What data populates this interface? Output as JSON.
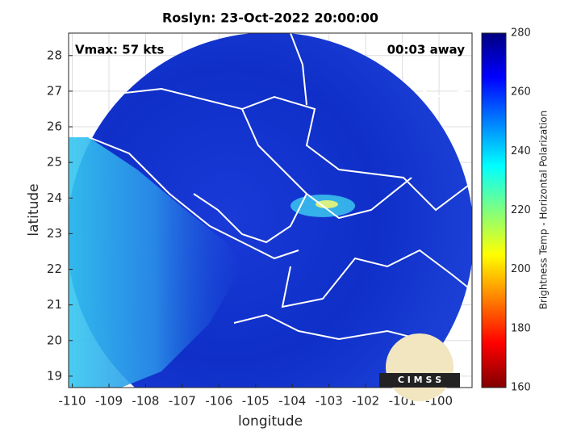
{
  "chart_data": {
    "type": "image",
    "title": "Roslyn: 23-Oct-2022 20:00:00",
    "xlabel": "longitude",
    "ylabel": "latitude",
    "annotations": [
      "Vmax: 57 kts",
      "00:03 away"
    ],
    "logo": "C I M S S",
    "xlim": [
      -110.1,
      -99.1
    ],
    "ylim": [
      18.68,
      28.63
    ],
    "xticks": [
      -110,
      -109,
      -108,
      -107,
      -106,
      -105,
      -104,
      -103,
      -102,
      -101,
      -100
    ],
    "yticks": [
      19,
      20,
      21,
      22,
      23,
      24,
      25,
      26,
      27,
      28
    ],
    "grid": true,
    "colorbar": {
      "label": "Brightness Temp - Horizontal Polarization",
      "lim": [
        160,
        280
      ],
      "ticks": [
        160,
        180,
        200,
        220,
        240,
        260,
        280
      ]
    }
  }
}
